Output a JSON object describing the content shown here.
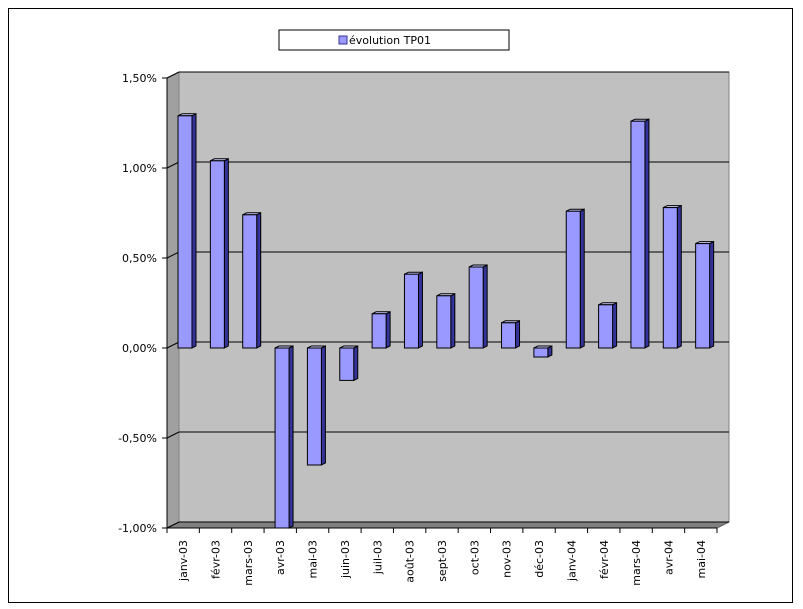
{
  "chart_data": {
    "type": "bar",
    "categories": [
      "janv-03",
      "févr-03",
      "mars-03",
      "avr-03",
      "mai-03",
      "juin-03",
      "juil-03",
      "août-03",
      "sept-03",
      "oct-03",
      "nov-03",
      "déc-03",
      "janv-04",
      "févr-04",
      "mars-04",
      "avr-04",
      "mai-04"
    ],
    "series": [
      {
        "name": "évolution TP01",
        "values": [
          1.29,
          1.04,
          0.74,
          -1.0,
          -0.65,
          -0.18,
          0.19,
          0.41,
          0.29,
          0.45,
          0.14,
          -0.05,
          0.76,
          0.24,
          1.26,
          0.78,
          0.58
        ]
      }
    ],
    "title": "",
    "xlabel": "",
    "ylabel": "",
    "ylim": [
      -1.0,
      1.5
    ],
    "yticks": [
      1.5,
      1.0,
      0.5,
      0.0,
      -0.5,
      -1.0
    ],
    "ytick_labels": [
      "1,50%",
      "1,00%",
      "0,50%",
      "0,00%",
      "-0,50%",
      "-1,00%"
    ],
    "grid": true,
    "legend_position": "top-center",
    "colors": {
      "bar_front": "#9999ff",
      "bar_side": "#333399",
      "bar_top": "#ccccff",
      "wall": "#c0c0c0",
      "gridline": "#000000"
    }
  }
}
